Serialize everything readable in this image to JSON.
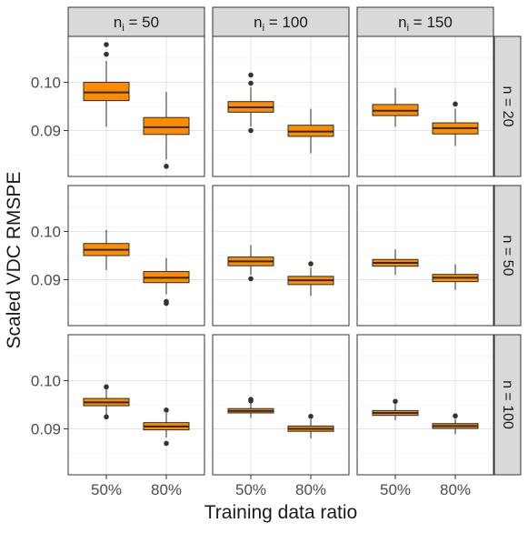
{
  "chart_data": {
    "type": "box",
    "xlabel": "Training data ratio",
    "ylabel": "Scaled VDC RMSPE",
    "categories": [
      "50%",
      "80%"
    ],
    "yticks": [
      0.09,
      0.1
    ],
    "ytick_labels": [
      "0.09",
      "0.10"
    ],
    "ylim": [
      0.0805,
      0.1095
    ],
    "grid": true,
    "col_strip": {
      "base": "n",
      "sub": "i",
      "op": "="
    },
    "row_strip": {
      "base": "n",
      "op": "="
    },
    "col_values": [
      "50",
      "100",
      "150"
    ],
    "row_values": [
      "20",
      "50",
      "100"
    ],
    "colors": {
      "fill": "#FF8C00",
      "border": "#2b2b2b",
      "strip": "#d9d9d9",
      "outlier": "#333333"
    },
    "panels": [
      {
        "row": "20",
        "col": "50",
        "boxes": [
          {
            "category": "50%",
            "q1": 0.0962,
            "median": 0.0979,
            "q3": 0.1,
            "whisker_low": 0.0908,
            "whisker_high": 0.1044,
            "outliers": [
              0.1058,
              0.1078
            ]
          },
          {
            "category": "80%",
            "q1": 0.0892,
            "median": 0.0907,
            "q3": 0.0927,
            "whisker_low": 0.084,
            "whisker_high": 0.098,
            "outliers": [
              0.0826
            ]
          }
        ]
      },
      {
        "row": "20",
        "col": "100",
        "boxes": [
          {
            "category": "50%",
            "q1": 0.0938,
            "median": 0.0948,
            "q3": 0.096,
            "whisker_low": 0.0908,
            "whisker_high": 0.099,
            "outliers": [
              0.09,
              0.0998,
              0.1015
            ]
          },
          {
            "category": "80%",
            "q1": 0.0888,
            "median": 0.0898,
            "q3": 0.0911,
            "whisker_low": 0.0853,
            "whisker_high": 0.0945,
            "outliers": []
          }
        ]
      },
      {
        "row": "20",
        "col": "150",
        "boxes": [
          {
            "category": "50%",
            "q1": 0.0931,
            "median": 0.0941,
            "q3": 0.0954,
            "whisker_low": 0.0908,
            "whisker_high": 0.0988,
            "outliers": []
          },
          {
            "category": "80%",
            "q1": 0.0893,
            "median": 0.0905,
            "q3": 0.0916,
            "whisker_low": 0.0868,
            "whisker_high": 0.0945,
            "outliers": [
              0.0955
            ]
          }
        ]
      },
      {
        "row": "50",
        "col": "50",
        "boxes": [
          {
            "category": "50%",
            "q1": 0.095,
            "median": 0.0962,
            "q3": 0.0975,
            "whisker_low": 0.092,
            "whisker_high": 0.1003,
            "outliers": []
          },
          {
            "category": "80%",
            "q1": 0.0894,
            "median": 0.0904,
            "q3": 0.0917,
            "whisker_low": 0.087,
            "whisker_high": 0.0945,
            "outliers": [
              0.0851,
              0.0855
            ]
          }
        ]
      },
      {
        "row": "50",
        "col": "100",
        "boxes": [
          {
            "category": "50%",
            "q1": 0.0929,
            "median": 0.0938,
            "q3": 0.0947,
            "whisker_low": 0.091,
            "whisker_high": 0.0972,
            "outliers": [
              0.0902
            ]
          },
          {
            "category": "80%",
            "q1": 0.089,
            "median": 0.0899,
            "q3": 0.0907,
            "whisker_low": 0.0867,
            "whisker_high": 0.0925,
            "outliers": [
              0.0933
            ]
          }
        ]
      },
      {
        "row": "50",
        "col": "150",
        "boxes": [
          {
            "category": "50%",
            "q1": 0.0928,
            "median": 0.0935,
            "q3": 0.0942,
            "whisker_low": 0.091,
            "whisker_high": 0.0963,
            "outliers": []
          },
          {
            "category": "80%",
            "q1": 0.0896,
            "median": 0.0904,
            "q3": 0.0911,
            "whisker_low": 0.0879,
            "whisker_high": 0.0932,
            "outliers": []
          }
        ]
      },
      {
        "row": "100",
        "col": "50",
        "boxes": [
          {
            "category": "50%",
            "q1": 0.0948,
            "median": 0.0955,
            "q3": 0.0963,
            "whisker_low": 0.0929,
            "whisker_high": 0.0983,
            "outliers": [
              0.0925,
              0.0987
            ]
          },
          {
            "category": "80%",
            "q1": 0.0898,
            "median": 0.0905,
            "q3": 0.0913,
            "whisker_low": 0.0882,
            "whisker_high": 0.0933,
            "outliers": [
              0.087,
              0.0939
            ]
          }
        ]
      },
      {
        "row": "100",
        "col": "100",
        "boxes": [
          {
            "category": "50%",
            "q1": 0.0933,
            "median": 0.0937,
            "q3": 0.0942,
            "whisker_low": 0.0923,
            "whisker_high": 0.0954,
            "outliers": [
              0.0958,
              0.0961
            ]
          },
          {
            "category": "80%",
            "q1": 0.0895,
            "median": 0.09,
            "q3": 0.0906,
            "whisker_low": 0.088,
            "whisker_high": 0.092,
            "outliers": [
              0.0926
            ]
          }
        ]
      },
      {
        "row": "100",
        "col": "150",
        "boxes": [
          {
            "category": "50%",
            "q1": 0.0928,
            "median": 0.0933,
            "q3": 0.0938,
            "whisker_low": 0.0918,
            "whisker_high": 0.0953,
            "outliers": [
              0.0957
            ]
          },
          {
            "category": "80%",
            "q1": 0.0901,
            "median": 0.0906,
            "q3": 0.0911,
            "whisker_low": 0.0889,
            "whisker_high": 0.0921,
            "outliers": [
              0.0927
            ]
          }
        ]
      }
    ]
  }
}
